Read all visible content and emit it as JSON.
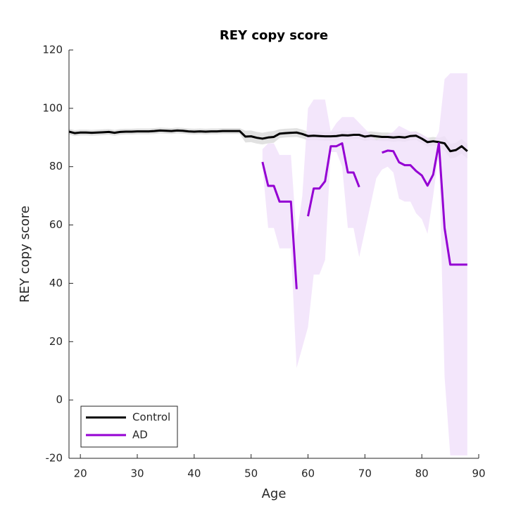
{
  "chart_data": {
    "type": "line",
    "title": "REY copy score",
    "x_label": "Age",
    "y_label": "REY copy score",
    "xlim": [
      18,
      90
    ],
    "ylim": [
      -20,
      120
    ],
    "xticks": [
      20,
      30,
      40,
      50,
      60,
      70,
      80,
      90
    ],
    "yticks": [
      -20,
      0,
      20,
      40,
      60,
      80,
      100,
      120
    ],
    "grid": false,
    "legend_position": "lower left",
    "series": [
      {
        "name": "Control",
        "color": "#000000",
        "band_color": "#d9d9d9",
        "x": [
          18,
          19,
          20,
          21,
          22,
          23,
          24,
          25,
          26,
          27,
          28,
          29,
          30,
          31,
          32,
          33,
          34,
          35,
          36,
          37,
          38,
          39,
          40,
          41,
          42,
          43,
          44,
          45,
          46,
          47,
          48,
          49,
          50,
          51,
          52,
          53,
          54,
          55,
          56,
          57,
          58,
          59,
          60,
          61,
          62,
          63,
          64,
          65,
          66,
          67,
          68,
          69,
          70,
          71,
          72,
          73,
          74,
          75,
          76,
          77,
          78,
          79,
          80,
          81,
          82,
          83,
          84,
          85,
          86,
          87,
          88
        ],
        "values": [
          92,
          91.5,
          91.7,
          91.7,
          91.6,
          91.7,
          91.8,
          91.9,
          91.6,
          91.9,
          92,
          92,
          92.1,
          92.1,
          92.1,
          92.2,
          92.4,
          92.3,
          92.2,
          92.4,
          92.3,
          92.1,
          92,
          92.1,
          92,
          92.1,
          92.1,
          92.2,
          92.2,
          92.2,
          92.2,
          90.3,
          90.4,
          89.9,
          89.6,
          90,
          90.2,
          91.3,
          91.5,
          91.6,
          91.7,
          91.2,
          90.5,
          90.6,
          90.5,
          90.4,
          90.4,
          90.5,
          90.8,
          90.7,
          90.9,
          90.9,
          90.3,
          90.6,
          90.4,
          90.2,
          90.2,
          90,
          90.2,
          90,
          90.5,
          90.6,
          89.6,
          88.4,
          88.7,
          88.4,
          88,
          85.3,
          85.7,
          87,
          85.3
        ],
        "lower": [
          91,
          90.5,
          90.7,
          90.7,
          90.6,
          90.7,
          90.8,
          90.9,
          90.6,
          90.9,
          91,
          91,
          91.1,
          91.1,
          91.1,
          91.2,
          91.4,
          91.3,
          91.2,
          91.4,
          91.3,
          91.1,
          91,
          91.1,
          91,
          91.1,
          91.1,
          91.2,
          91.2,
          91.2,
          91.2,
          88.3,
          88.4,
          87.9,
          87.6,
          88,
          88.2,
          89.8,
          90,
          90.1,
          90.2,
          89.7,
          89,
          89.1,
          89,
          88.9,
          88.9,
          89,
          89.3,
          89.2,
          89.4,
          89.4,
          88.8,
          89.1,
          88.9,
          88.7,
          88.7,
          88.5,
          88.7,
          88.5,
          89,
          89.1,
          88.1,
          86.9,
          87.2,
          86.9,
          85.5,
          82.8,
          83.2,
          84.5,
          82.8
        ],
        "upper": [
          93,
          92.5,
          92.7,
          92.7,
          92.6,
          92.7,
          92.8,
          92.9,
          92.6,
          92.9,
          93,
          93,
          93.1,
          93.1,
          93.1,
          93.2,
          93.4,
          93.3,
          93.2,
          93.4,
          93.3,
          93.1,
          93,
          93.1,
          93,
          93.1,
          93.1,
          93.2,
          93.2,
          93.2,
          93.2,
          92.3,
          92.4,
          91.9,
          91.6,
          92,
          92.2,
          92.8,
          93,
          93.1,
          93.2,
          92.7,
          92,
          92.1,
          92,
          91.9,
          91.9,
          92,
          92.3,
          92.2,
          92.4,
          92.4,
          91.8,
          92.1,
          91.9,
          91.7,
          91.7,
          91.5,
          91.7,
          91.5,
          92,
          92.1,
          91.1,
          89.9,
          90.2,
          89.9,
          90.5,
          87.8,
          88.2,
          89.5,
          87.8
        ]
      },
      {
        "name": "AD",
        "color": "#9400d3",
        "band_color": "#f0e0fa",
        "x": [
          52,
          53,
          54,
          55,
          56,
          57,
          58,
          59,
          60,
          61,
          62,
          63,
          64,
          65,
          66,
          67,
          68,
          69,
          70,
          71,
          72,
          73,
          74,
          75,
          76,
          77,
          78,
          79,
          80,
          81,
          82,
          83,
          84,
          85,
          86,
          87,
          88
        ],
        "values": [
          81.6,
          73.4,
          73.4,
          68,
          68,
          68,
          38,
          null,
          63,
          72.5,
          72.5,
          75,
          87,
          87,
          88,
          78,
          78,
          73,
          null,
          null,
          null,
          84.8,
          85.5,
          85.3,
          81.5,
          80.5,
          80.5,
          78.5,
          77,
          73.5,
          77.3,
          88,
          59,
          46.4,
          46.4,
          46.4,
          46.4
        ],
        "lower": [
          80,
          59,
          59,
          52,
          52,
          52,
          11,
          18,
          25,
          43,
          43,
          48,
          85,
          85,
          80,
          59,
          59,
          49,
          58,
          67,
          76,
          79,
          80,
          78,
          69,
          68,
          68,
          64,
          62,
          57,
          70,
          85,
          8,
          -19,
          -19,
          -19,
          -19
        ],
        "upper": [
          86,
          88,
          88,
          84,
          84,
          84,
          56,
          70,
          100,
          103,
          103,
          103,
          92,
          95,
          97,
          97,
          97,
          95,
          93,
          91,
          89,
          90,
          91,
          92,
          94,
          93,
          92,
          92,
          91,
          90,
          88,
          92,
          110,
          112,
          112,
          112,
          112
        ]
      }
    ]
  }
}
